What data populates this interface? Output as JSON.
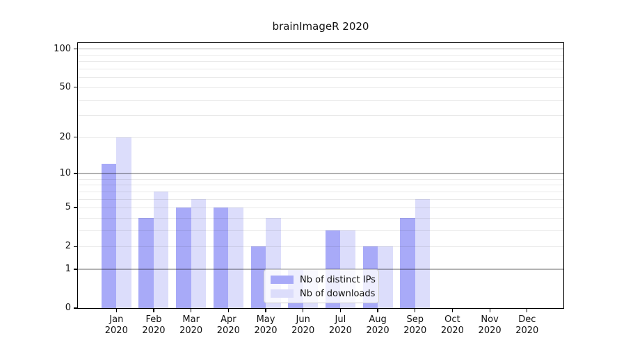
{
  "chart_data": {
    "type": "bar",
    "title": "brainImageR 2020",
    "categories": [
      "Jan",
      "Feb",
      "Mar",
      "Apr",
      "May",
      "Jun",
      "Jul",
      "Aug",
      "Sep",
      "Oct",
      "Nov",
      "Dec"
    ],
    "x_tick_year_line": "2020",
    "series": [
      {
        "name": "Nb of distinct IPs",
        "color": "#a8aaf8",
        "values": [
          12,
          4,
          5,
          5,
          2,
          1,
          3,
          2,
          4,
          0,
          0,
          0
        ]
      },
      {
        "name": "Nb of downloads",
        "color": "#dcddfb",
        "values": [
          20,
          7,
          6,
          5,
          4,
          1,
          3,
          2,
          6,
          0,
          0,
          0
        ]
      }
    ],
    "yscale": "log1p",
    "ylim": [
      0,
      111
    ],
    "y_tick_labels": [
      0,
      1,
      2,
      5,
      10,
      20,
      50,
      100
    ],
    "y_major_grid_values": [
      1,
      10,
      100
    ],
    "y_minor_grid_values": [
      2,
      3,
      4,
      5,
      6,
      7,
      8,
      9,
      20,
      30,
      40,
      50,
      60,
      70,
      80,
      90
    ],
    "grid": true,
    "legend": {
      "position": "lower center",
      "entries": [
        "Nb of distinct IPs",
        "Nb of downloads"
      ]
    },
    "colors": {
      "bar_distinct_ips": "#a8aaf8",
      "bar_downloads": "#dcddfb",
      "major_grid": "rgba(0,0,0,0.30)",
      "minor_grid": "rgba(0,0,0,0.085)",
      "spine": "#000000",
      "text": "#111111",
      "background": "#ffffff"
    }
  }
}
